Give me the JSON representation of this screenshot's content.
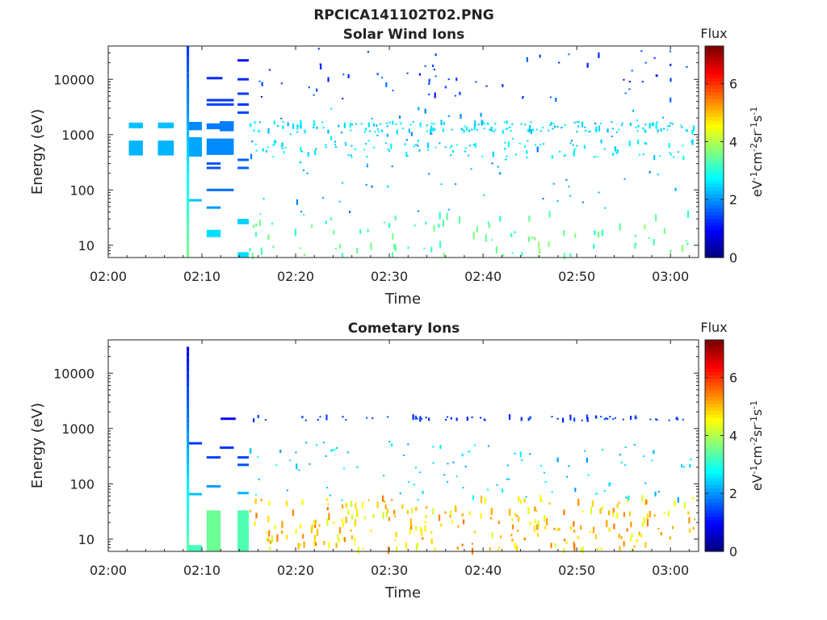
{
  "figure": {
    "title": "RPCICA141102T02.PNG"
  },
  "chart_data": [
    {
      "type": "heatmap",
      "title": "Solar Wind Ions",
      "xlabel": "Time",
      "ylabel": "Energy (eV)",
      "yscale": "log",
      "ylim": [
        6,
        40000
      ],
      "x_ticks": [
        "02:00",
        "02:10",
        "02:20",
        "02:30",
        "02:40",
        "02:50",
        "03:00"
      ],
      "xlim_minutes": [
        0,
        63
      ],
      "y_ticks": [
        {
          "v": 10,
          "label": "10"
        },
        {
          "v": 100,
          "label": "100"
        },
        {
          "v": 1000,
          "label": "1000"
        },
        {
          "v": 10000,
          "label": "10000"
        }
      ],
      "colorbar": {
        "label_head": "Flux",
        "label": "eV-1cm-2sr-1s-1",
        "range": [
          0,
          7.3
        ],
        "ticks": [
          0,
          2,
          4,
          6
        ],
        "colormap": "jet"
      },
      "patches": [
        {
          "t": [
            2.2,
            3.7
          ],
          "e": [
            1300,
            1650
          ],
          "flux": 2.3
        },
        {
          "t": [
            5.3,
            7.0
          ],
          "e": [
            1300,
            1650
          ],
          "flux": 2.3
        },
        {
          "t": [
            2.2,
            3.7
          ],
          "e": [
            420,
            780
          ],
          "flux": 2.2
        },
        {
          "t": [
            5.3,
            7.0
          ],
          "e": [
            420,
            780
          ],
          "flux": 2.2
        },
        {
          "t": [
            8.4,
            10.0
          ],
          "e": [
            1200,
            1700
          ],
          "flux": 1.9
        },
        {
          "t": [
            8.4,
            10.0
          ],
          "e": [
            400,
            900
          ],
          "flux": 2.1
        },
        {
          "t": [
            10.5,
            12.0
          ],
          "e": [
            1250,
            1600
          ],
          "flux": 1.8
        },
        {
          "t": [
            11.9,
            13.4
          ],
          "e": [
            1150,
            1750
          ],
          "flux": 1.8
        },
        {
          "t": [
            10.5,
            13.4
          ],
          "e": [
            430,
            850
          ],
          "flux": 1.9
        },
        {
          "t": [
            10.5,
            12.0
          ],
          "e": [
            14,
            19
          ],
          "flux": 2.5
        },
        {
          "t": [
            13.8,
            15.0
          ],
          "e": [
            24,
            30
          ],
          "flux": 2.4
        },
        {
          "t": [
            13.8,
            15.0
          ],
          "e": [
            6,
            7.5
          ],
          "flux": 2.5
        }
      ],
      "lines": [
        {
          "t": [
            10.5,
            12.2
          ],
          "e": 10500,
          "flux": 1.2
        },
        {
          "t": [
            10.5,
            13.4
          ],
          "e": 4200,
          "flux": 1.3
        },
        {
          "t": [
            10.5,
            13.4
          ],
          "e": 3500,
          "flux": 1.4
        },
        {
          "t": [
            10.5,
            12.0
          ],
          "e": 300,
          "flux": 1.5
        },
        {
          "t": [
            10.5,
            12.0
          ],
          "e": 250,
          "flux": 1.5
        },
        {
          "t": [
            10.5,
            13.4
          ],
          "e": 100,
          "flux": 1.7
        },
        {
          "t": [
            10.5,
            12.0
          ],
          "e": 48,
          "flux": 2.0
        },
        {
          "t": [
            13.8,
            15.0
          ],
          "e": 22000,
          "flux": 1.0
        },
        {
          "t": [
            13.8,
            15.0
          ],
          "e": 10000,
          "flux": 1.2
        },
        {
          "t": [
            13.8,
            15.0
          ],
          "e": 5500,
          "flux": 1.3
        },
        {
          "t": [
            13.8,
            15.0
          ],
          "e": 3500,
          "flux": 1.3
        },
        {
          "t": [
            13.8,
            15.0
          ],
          "e": 2500,
          "flux": 1.4
        },
        {
          "t": [
            13.8,
            15.0
          ],
          "e": 350,
          "flux": 1.6
        },
        {
          "t": [
            13.8,
            15.0
          ],
          "e": 250,
          "flux": 1.6
        },
        {
          "t": [
            8.5,
            10.0
          ],
          "e": 65,
          "flux": 2.3
        }
      ],
      "spikes": [
        {
          "t": 8.5,
          "e": [
            6,
            40000
          ],
          "flux": 2.5
        }
      ],
      "scatter_seed": 7,
      "scatter_count": 520,
      "scatter_t": [
        15.0,
        62.5
      ],
      "scatter_bands": [
        {
          "e": [
            1100,
            1700
          ],
          "w": 0.28,
          "flux": [
            2.2,
            2.8
          ]
        },
        {
          "e": [
            380,
            780
          ],
          "w": 0.2,
          "flux": [
            2.3,
            2.9
          ]
        },
        {
          "e": [
            40,
            3000
          ],
          "w": 0.18,
          "flux": [
            1.7,
            2.6
          ]
        },
        {
          "e": [
            4000,
            36000
          ],
          "w": 0.14,
          "flux": [
            1.0,
            1.8
          ]
        },
        {
          "e": [
            6,
            40
          ],
          "w": 0.2,
          "flux": [
            3.0,
            3.8
          ]
        }
      ]
    },
    {
      "type": "heatmap",
      "title": "Cometary Ions",
      "xlabel": "Time",
      "ylabel": "Energy (eV)",
      "yscale": "log",
      "ylim": [
        6,
        40000
      ],
      "x_ticks": [
        "02:00",
        "02:10",
        "02:20",
        "02:30",
        "02:40",
        "02:50",
        "03:00"
      ],
      "xlim_minutes": [
        0,
        63
      ],
      "y_ticks": [
        {
          "v": 10,
          "label": "10"
        },
        {
          "v": 100,
          "label": "100"
        },
        {
          "v": 1000,
          "label": "1000"
        },
        {
          "v": 10000,
          "label": "10000"
        }
      ],
      "colorbar": {
        "label_head": "Flux",
        "label": "eV-1cm-2sr-1s-1",
        "range": [
          0,
          7.3
        ],
        "ticks": [
          0,
          2,
          4,
          6
        ],
        "colormap": "jet"
      },
      "patches": [
        {
          "t": [
            8.4,
            10.0
          ],
          "e": [
            6,
            7.8
          ],
          "flux": 3.2
        },
        {
          "t": [
            10.5,
            12.0
          ],
          "e": [
            6,
            33
          ],
          "flux": 3.5
        },
        {
          "t": [
            13.8,
            15.0
          ],
          "e": [
            6,
            33
          ],
          "flux": 3.3
        }
      ],
      "lines": [
        {
          "t": [
            12.0,
            13.6
          ],
          "e": 1500,
          "flux": 0.8
        },
        {
          "t": [
            8.5,
            10.0
          ],
          "e": 540,
          "flux": 1.3
        },
        {
          "t": [
            11.9,
            13.4
          ],
          "e": 450,
          "flux": 1.3
        },
        {
          "t": [
            10.5,
            12.0
          ],
          "e": 300,
          "flux": 1.4
        },
        {
          "t": [
            13.8,
            15.0
          ],
          "e": 300,
          "flux": 1.4
        },
        {
          "t": [
            13.8,
            15.0
          ],
          "e": 220,
          "flux": 1.5
        },
        {
          "t": [
            10.5,
            12.0
          ],
          "e": 90,
          "flux": 2.0
        },
        {
          "t": [
            13.8,
            15.0
          ],
          "e": 68,
          "flux": 2.2
        },
        {
          "t": [
            8.5,
            10.0
          ],
          "e": 65,
          "flux": 2.3
        }
      ],
      "spikes": [
        {
          "t": 8.5,
          "e": [
            6,
            30000
          ],
          "flux": 1.2
        }
      ],
      "scatter_seed": 19,
      "scatter_count": 420,
      "scatter_t": [
        15.0,
        62.5
      ],
      "scatter_bands": [
        {
          "e": [
            1400,
            1650
          ],
          "w": 0.14,
          "flux": [
            1.1,
            1.6
          ]
        },
        {
          "e": [
            50,
            600
          ],
          "w": 0.24,
          "flux": [
            2.0,
            2.8
          ]
        },
        {
          "e": [
            6,
            55
          ],
          "w": 0.62,
          "flux": [
            4.2,
            5.6
          ]
        }
      ]
    }
  ]
}
